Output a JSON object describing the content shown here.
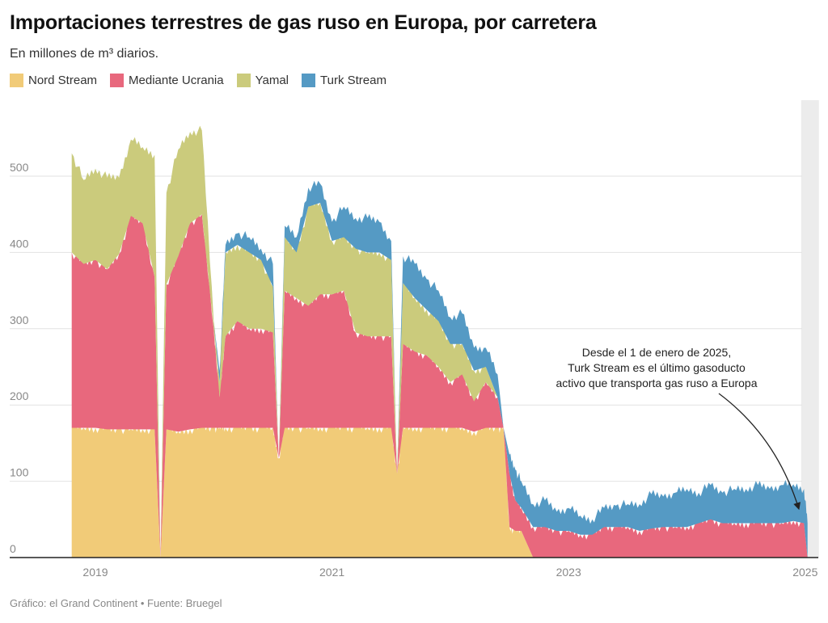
{
  "title": "Importaciones terrestres de gas ruso en Europa, por carretera",
  "subtitle": "En millones de m³ diarios.",
  "footer": "Gráfico: el Grand Continent • Fuente: Bruegel",
  "chart_data": {
    "type": "area",
    "stacked": true,
    "title": "Importaciones terrestres de gas ruso en Europa, por carretera",
    "subtitle": "En millones de m³ diarios.",
    "xlabel": "",
    "ylabel": "",
    "ylim": [
      0,
      600
    ],
    "xlim": [
      2018.8,
      2025.1
    ],
    "yticks": [
      0,
      100,
      200,
      300,
      400,
      500
    ],
    "xticks": [
      2019,
      2021,
      2023,
      2025
    ],
    "xtick_labels": [
      "2019",
      "2021",
      "2023",
      "2025"
    ],
    "grid": true,
    "legend_position": "top-left",
    "highlight_band": [
      2025.0,
      2025.1
    ],
    "annotation": {
      "lines": [
        "Desde el 1 de enero de 2025,",
        "Turk Stream es el último gasoducto",
        "activo que transporta gas ruso a Europa"
      ],
      "points_to": [
        2025.0,
        60
      ]
    },
    "x": [
      2018.8,
      2018.9,
      2019.0,
      2019.1,
      2019.2,
      2019.3,
      2019.4,
      2019.5,
      2019.55,
      2019.6,
      2019.7,
      2019.8,
      2019.9,
      2020.0,
      2020.05,
      2020.1,
      2020.2,
      2020.3,
      2020.4,
      2020.5,
      2020.55,
      2020.6,
      2020.7,
      2020.8,
      2020.9,
      2021.0,
      2021.1,
      2021.2,
      2021.3,
      2021.4,
      2021.5,
      2021.55,
      2021.6,
      2021.7,
      2021.8,
      2021.9,
      2022.0,
      2022.1,
      2022.2,
      2022.3,
      2022.4,
      2022.45,
      2022.5,
      2022.55,
      2022.6,
      2022.7,
      2022.8,
      2022.9,
      2023.0,
      2023.1,
      2023.2,
      2023.3,
      2023.4,
      2023.5,
      2023.6,
      2023.7,
      2023.8,
      2023.9,
      2024.0,
      2024.1,
      2024.2,
      2024.3,
      2024.4,
      2024.5,
      2024.6,
      2024.7,
      2024.8,
      2024.9,
      2024.99,
      2025.02
    ],
    "series": [
      {
        "name": "Nord Stream",
        "color": "#f1cb78",
        "values": [
          170,
          170,
          170,
          168,
          168,
          168,
          168,
          168,
          0,
          168,
          165,
          168,
          170,
          170,
          170,
          170,
          170,
          170,
          170,
          170,
          130,
          170,
          170,
          170,
          170,
          170,
          170,
          170,
          170,
          170,
          170,
          110,
          170,
          170,
          170,
          170,
          170,
          170,
          165,
          170,
          170,
          170,
          40,
          35,
          35,
          0,
          0,
          0,
          0,
          0,
          0,
          0,
          0,
          0,
          0,
          0,
          0,
          0,
          0,
          0,
          0,
          0,
          0,
          0,
          0,
          0,
          0,
          0,
          0,
          0
        ]
      },
      {
        "name": "Mediante Ucrania",
        "color": "#e8687d",
        "values": [
          230,
          215,
          220,
          210,
          230,
          280,
          270,
          200,
          0,
          190,
          230,
          270,
          280,
          130,
          40,
          120,
          140,
          130,
          130,
          125,
          0,
          180,
          170,
          160,
          175,
          175,
          180,
          125,
          120,
          120,
          120,
          0,
          110,
          100,
          95,
          80,
          60,
          70,
          40,
          60,
          40,
          0,
          70,
          40,
          30,
          40,
          40,
          35,
          35,
          30,
          30,
          40,
          40,
          40,
          35,
          38,
          40,
          40,
          40,
          45,
          50,
          45,
          45,
          45,
          45,
          45,
          45,
          48,
          45,
          0
        ]
      },
      {
        "name": "Yamal",
        "color": "#cbcb7c",
        "values": [
          130,
          110,
          120,
          120,
          100,
          100,
          100,
          160,
          0,
          120,
          140,
          120,
          110,
          10,
          20,
          110,
          100,
          100,
          90,
          60,
          0,
          70,
          60,
          130,
          120,
          70,
          70,
          110,
          110,
          110,
          100,
          0,
          80,
          70,
          60,
          60,
          50,
          40,
          40,
          20,
          0,
          0,
          0,
          0,
          0,
          0,
          0,
          0,
          0,
          0,
          0,
          0,
          0,
          0,
          0,
          0,
          0,
          0,
          0,
          0,
          0,
          0,
          0,
          0,
          0,
          0,
          0,
          0,
          0,
          0
        ]
      },
      {
        "name": "Turk Stream",
        "color": "#559ac4",
        "values": [
          0,
          0,
          0,
          0,
          0,
          0,
          0,
          0,
          0,
          0,
          0,
          0,
          0,
          0,
          15,
          10,
          15,
          20,
          15,
          30,
          0,
          15,
          20,
          25,
          25,
          25,
          40,
          40,
          45,
          40,
          25,
          0,
          35,
          45,
          40,
          40,
          35,
          40,
          30,
          25,
          30,
          0,
          25,
          40,
          35,
          30,
          35,
          25,
          30,
          25,
          20,
          25,
          28,
          30,
          35,
          45,
          40,
          45,
          50,
          40,
          45,
          40,
          45,
          45,
          50,
          45,
          50,
          48,
          45,
          45
        ]
      }
    ]
  }
}
